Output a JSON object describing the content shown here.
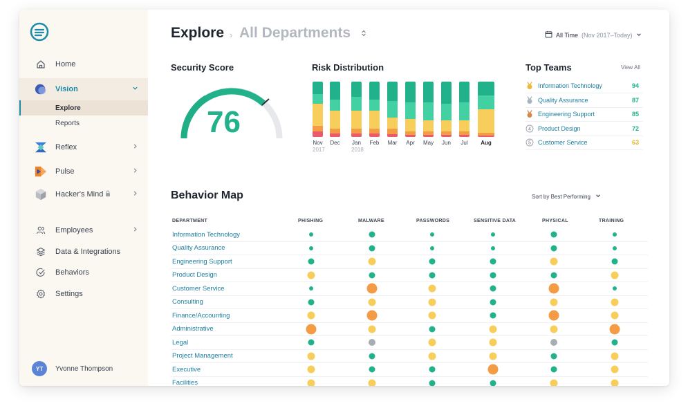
{
  "sidebar": {
    "nav": [
      {
        "label": "Home"
      },
      {
        "label": "Vision"
      },
      {
        "label": "Reflex"
      },
      {
        "label": "Pulse"
      },
      {
        "label": "Hacker's Mind"
      }
    ],
    "sub": [
      {
        "label": "Explore"
      },
      {
        "label": "Reports"
      }
    ],
    "bottom": [
      {
        "label": "Employees"
      },
      {
        "label": "Data & Integrations"
      },
      {
        "label": "Behaviors"
      },
      {
        "label": "Settings"
      }
    ],
    "user": {
      "initials": "YT",
      "name": "Yvonne Thompson"
    }
  },
  "header": {
    "title": "Explore",
    "breadcrumb": "All Departments",
    "time_label": "All Time",
    "time_range": "(Nov 2017–Today)"
  },
  "security_score": {
    "title": "Security Score",
    "value": "76"
  },
  "risk": {
    "title": "Risk Distribution",
    "months": [
      {
        "label": "Nov",
        "sub": "2017"
      },
      {
        "label": "Dec",
        "sub": ""
      },
      {
        "label": "Jan",
        "sub": "2018"
      },
      {
        "label": "Feb",
        "sub": ""
      },
      {
        "label": "Mar",
        "sub": ""
      },
      {
        "label": "Apr",
        "sub": ""
      },
      {
        "label": "May",
        "sub": ""
      },
      {
        "label": "Jun",
        "sub": ""
      },
      {
        "label": "Jul",
        "sub": ""
      },
      {
        "label": "Aug",
        "sub": ""
      }
    ]
  },
  "top_teams": {
    "title": "Top Teams",
    "view_all": "View All",
    "teams": [
      {
        "rank": "1",
        "name": "Information Technology",
        "score": "94",
        "color": "#21b28b"
      },
      {
        "rank": "2",
        "name": "Quality Assurance",
        "score": "87",
        "color": "#21b28b"
      },
      {
        "rank": "3",
        "name": "Engineering Support",
        "score": "85",
        "color": "#21b28b"
      },
      {
        "rank": "4",
        "name": "Product Design",
        "score": "72",
        "color": "#21b28b"
      },
      {
        "rank": "5",
        "name": "Customer Service",
        "score": "63",
        "color": "#e9b52b"
      }
    ]
  },
  "behavior_map": {
    "title": "Behavior Map",
    "sort_label": "Sort by Best Performing",
    "columns": [
      "DEPARTMENT",
      "PHISHING",
      "MALWARE",
      "PASSWORDS",
      "SENSITIVE DATA",
      "PHYSICAL",
      "TRAINING"
    ],
    "rows": [
      {
        "dept": "Information Technology",
        "v": [
          "g1",
          "g2",
          "g1",
          "g1",
          "g2",
          "g1"
        ]
      },
      {
        "dept": "Quality Assurance",
        "v": [
          "g1",
          "g2",
          "g1",
          "g1",
          "g2",
          "g1"
        ]
      },
      {
        "dept": "Engineering Support",
        "v": [
          "g2",
          "y2",
          "g2",
          "g2",
          "y2",
          "g2"
        ]
      },
      {
        "dept": "Product Design",
        "v": [
          "y2",
          "g2",
          "g2",
          "g2",
          "g2",
          "y2"
        ]
      },
      {
        "dept": "Customer Service",
        "v": [
          "g1",
          "o3",
          "y2",
          "g2",
          "o3",
          "g1"
        ]
      },
      {
        "dept": "Consulting",
        "v": [
          "g2",
          "y2",
          "y2",
          "g2",
          "y2",
          "y2"
        ]
      },
      {
        "dept": "Finance/Accounting",
        "v": [
          "y2",
          "o3",
          "y2",
          "g2",
          "o3",
          "y2"
        ]
      },
      {
        "dept": "Administrative",
        "v": [
          "o3",
          "y2",
          "g2",
          "y2",
          "y2",
          "o3"
        ]
      },
      {
        "dept": "Legal",
        "v": [
          "g2",
          "gr2",
          "y2",
          "y2",
          "gr2",
          "g2"
        ]
      },
      {
        "dept": "Project Management",
        "v": [
          "y2",
          "g2",
          "y2",
          "y2",
          "g2",
          "y2"
        ]
      },
      {
        "dept": "Executive",
        "v": [
          "y2",
          "g2",
          "g2",
          "o3",
          "g2",
          "y2"
        ]
      },
      {
        "dept": "Facilities",
        "v": [
          "y2",
          "y2",
          "g2",
          "g2",
          "y2",
          "y2"
        ]
      }
    ]
  },
  "colors": {
    "accent": "#1e8aa8",
    "green": "#21b28b",
    "teal_light": "#43d1a4",
    "yellow": "#f7cd5c",
    "orange": "#f39c45",
    "red": "#ea5a6b",
    "gray": "#a9aeb6"
  }
}
